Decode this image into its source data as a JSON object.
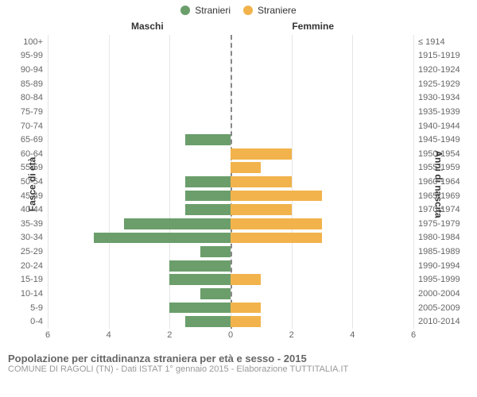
{
  "legend": {
    "male": {
      "label": "Stranieri",
      "color": "#6b9e6b"
    },
    "female": {
      "label": "Straniere",
      "color": "#f2b34c"
    }
  },
  "columns": {
    "left": "Maschi",
    "right": "Femmine"
  },
  "yAxis": {
    "left": "Fasce di età",
    "right": "Anni di nascita"
  },
  "chart": {
    "type": "population-pyramid",
    "xmax": 6,
    "xticks": [
      6,
      4,
      2,
      0,
      2,
      4,
      6
    ],
    "grid_color": "#e6e6e6",
    "center_color": "#888888",
    "background": "#ffffff",
    "label_color": "#666666",
    "bar_male_color": "#6b9e6b",
    "bar_female_color": "#f2b34c",
    "rows": [
      {
        "age": "100+",
        "birth": "≤ 1914",
        "m": 0,
        "f": 0
      },
      {
        "age": "95-99",
        "birth": "1915-1919",
        "m": 0,
        "f": 0
      },
      {
        "age": "90-94",
        "birth": "1920-1924",
        "m": 0,
        "f": 0
      },
      {
        "age": "85-89",
        "birth": "1925-1929",
        "m": 0,
        "f": 0
      },
      {
        "age": "80-84",
        "birth": "1930-1934",
        "m": 0,
        "f": 0
      },
      {
        "age": "75-79",
        "birth": "1935-1939",
        "m": 0,
        "f": 0
      },
      {
        "age": "70-74",
        "birth": "1940-1944",
        "m": 0,
        "f": 0
      },
      {
        "age": "65-69",
        "birth": "1945-1949",
        "m": 1.5,
        "f": 0
      },
      {
        "age": "60-64",
        "birth": "1950-1954",
        "m": 0,
        "f": 2
      },
      {
        "age": "55-59",
        "birth": "1955-1959",
        "m": 0,
        "f": 1
      },
      {
        "age": "50-54",
        "birth": "1960-1964",
        "m": 1.5,
        "f": 2
      },
      {
        "age": "45-49",
        "birth": "1965-1969",
        "m": 1.5,
        "f": 3
      },
      {
        "age": "40-44",
        "birth": "1970-1974",
        "m": 1.5,
        "f": 2
      },
      {
        "age": "35-39",
        "birth": "1975-1979",
        "m": 3.5,
        "f": 3
      },
      {
        "age": "30-34",
        "birth": "1980-1984",
        "m": 4.5,
        "f": 3
      },
      {
        "age": "25-29",
        "birth": "1985-1989",
        "m": 1,
        "f": 0
      },
      {
        "age": "20-24",
        "birth": "1990-1994",
        "m": 2,
        "f": 0
      },
      {
        "age": "15-19",
        "birth": "1995-1999",
        "m": 2,
        "f": 1
      },
      {
        "age": "10-14",
        "birth": "2000-2004",
        "m": 1,
        "f": 0
      },
      {
        "age": "5-9",
        "birth": "2005-2009",
        "m": 2,
        "f": 1
      },
      {
        "age": "0-4",
        "birth": "2010-2014",
        "m": 1.5,
        "f": 1
      }
    ]
  },
  "footer": {
    "title": "Popolazione per cittadinanza straniera per età e sesso - 2015",
    "subtitle": "COMUNE DI RAGOLI (TN) - Dati ISTAT 1° gennaio 2015 - Elaborazione TUTTITALIA.IT"
  }
}
